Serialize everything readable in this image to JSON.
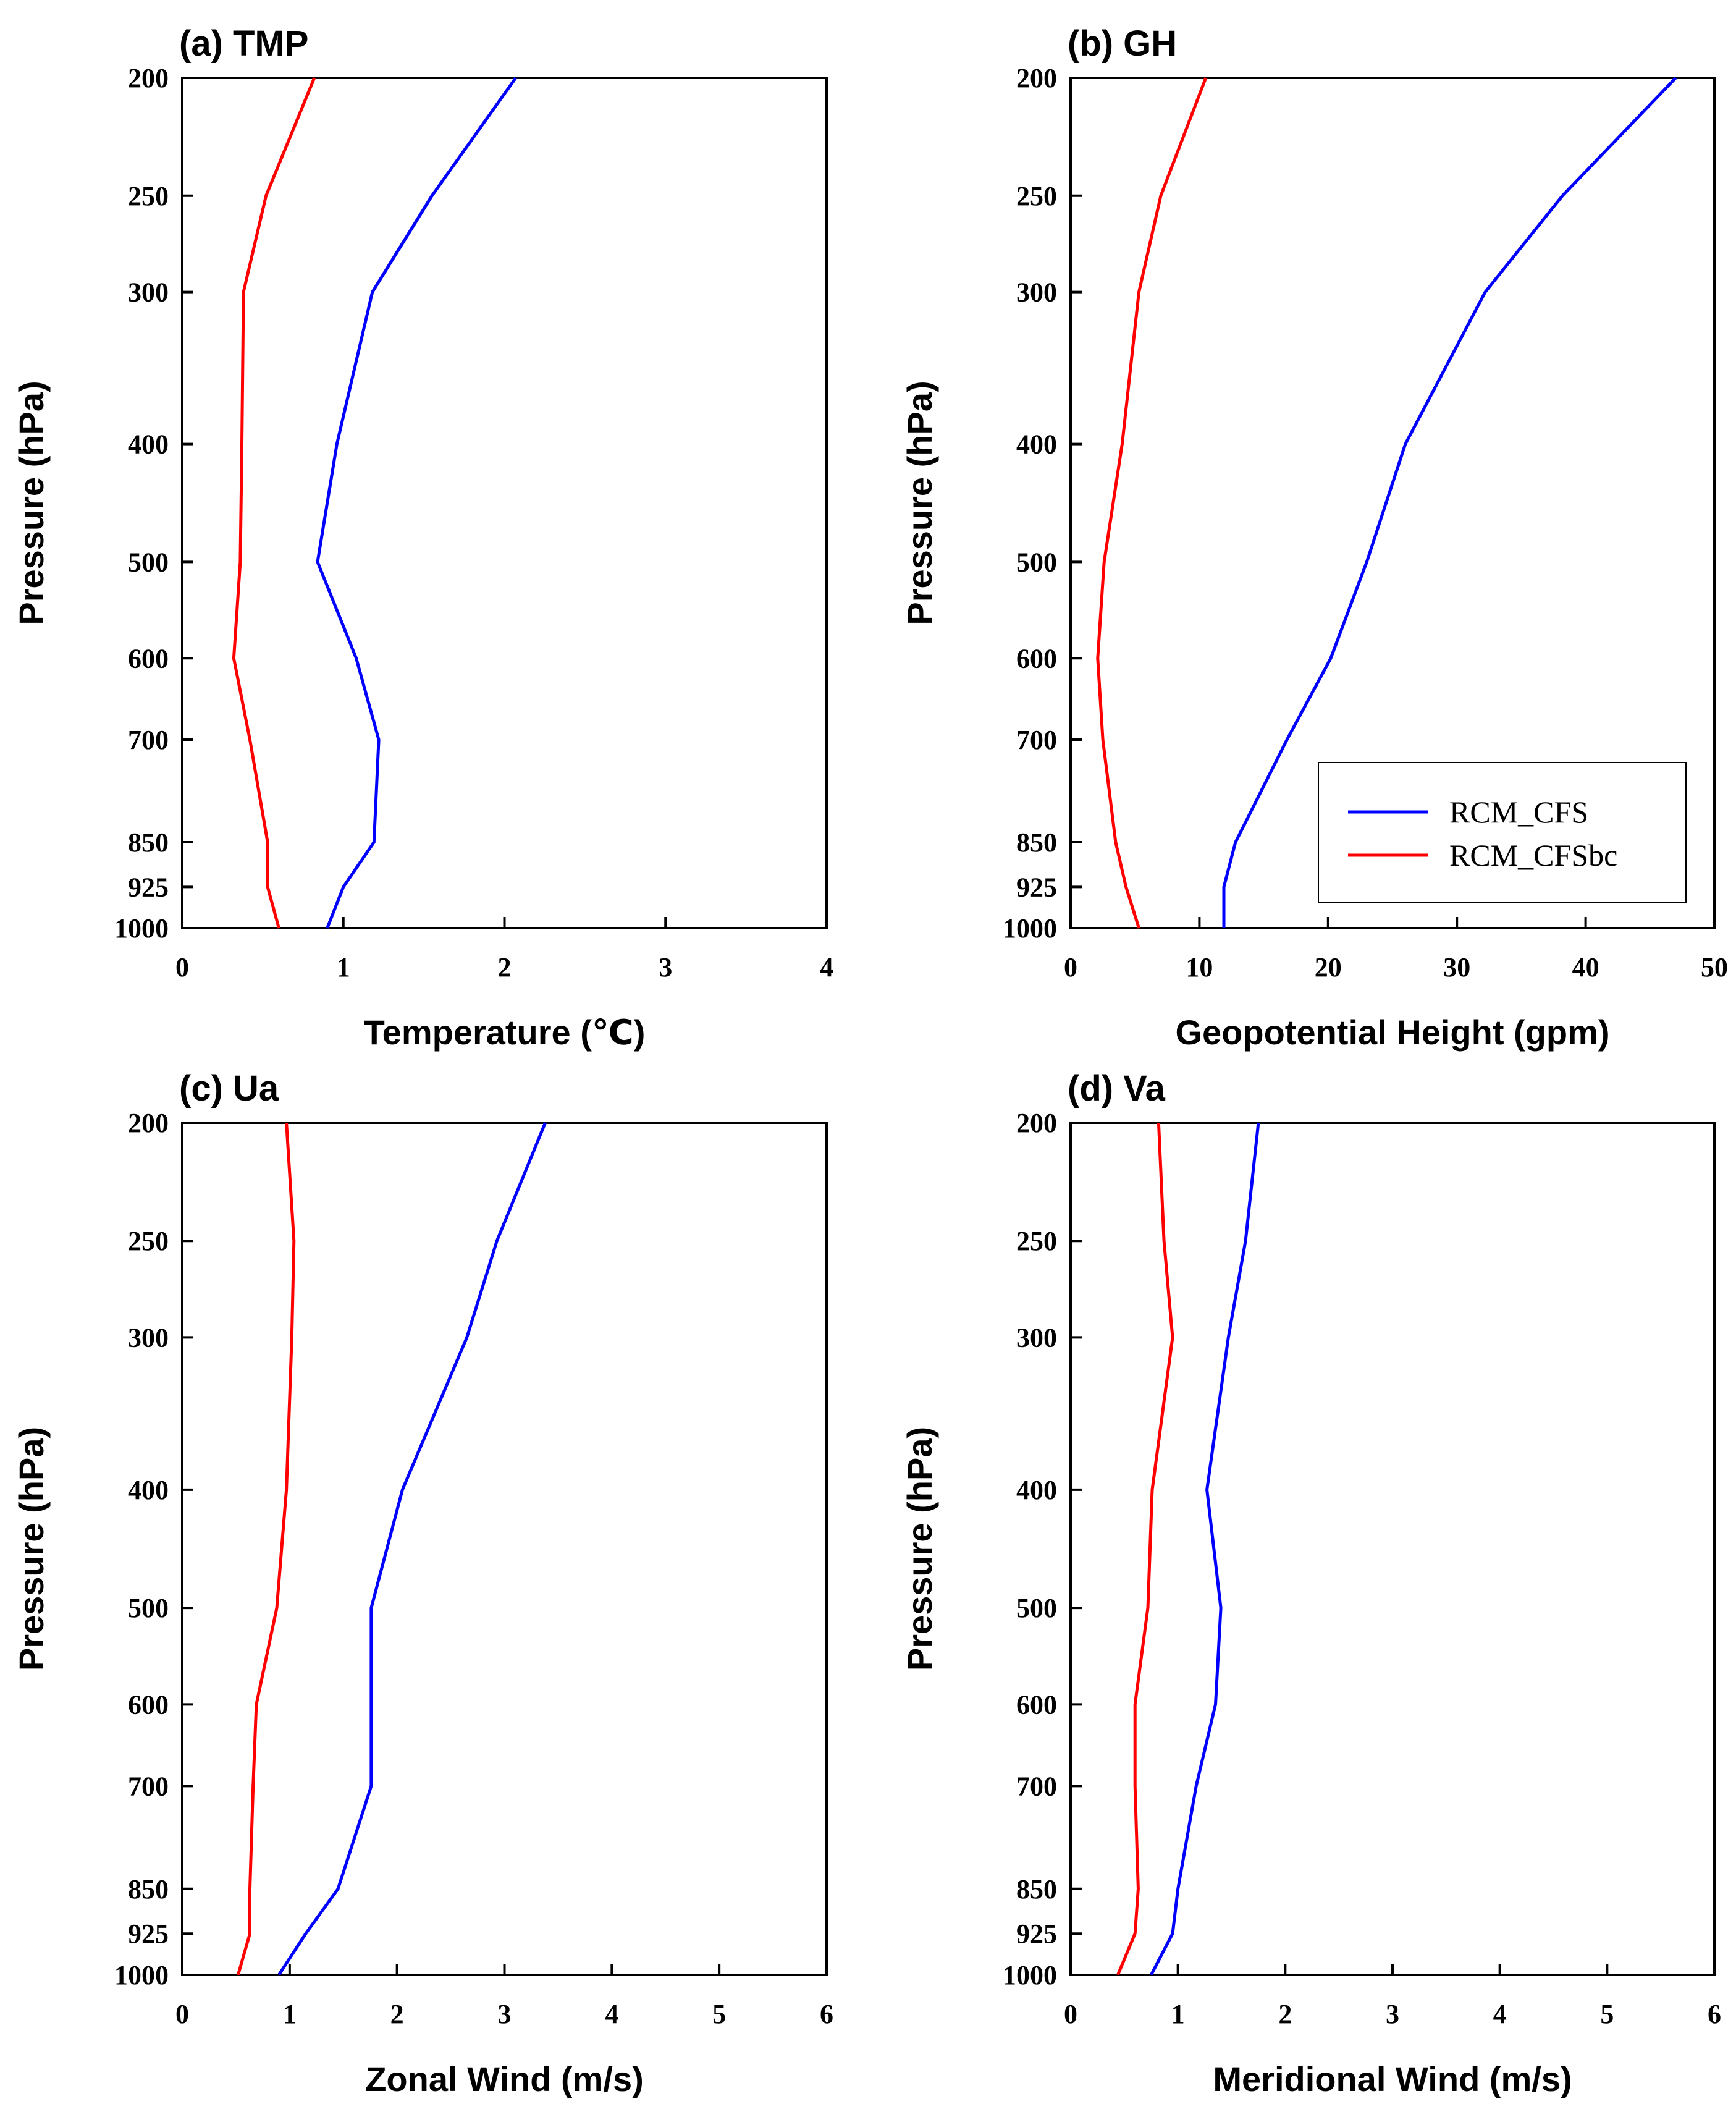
{
  "chart_data": [
    {
      "id": "a",
      "type": "line",
      "title": "(a) TMP",
      "xlabel": "Temperature (℃)",
      "ylabel": "Pressure (hPa)",
      "xlim": [
        0,
        4
      ],
      "xticks": [
        0,
        1,
        2,
        3,
        4
      ],
      "ylim": [
        1000,
        200
      ],
      "yticks": [
        200,
        250,
        300,
        400,
        500,
        600,
        700,
        850,
        925,
        1000
      ],
      "y": [
        200,
        250,
        300,
        400,
        500,
        600,
        700,
        850,
        925,
        1000
      ],
      "series": [
        {
          "name": "RCM_CFS",
          "color": "#0000ff",
          "values": [
            2.07,
            1.55,
            1.18,
            0.96,
            0.84,
            1.08,
            1.22,
            1.19,
            1.0,
            0.9
          ]
        },
        {
          "name": "RCM_CFSbc",
          "color": "#ff0000",
          "values": [
            0.82,
            0.52,
            0.38,
            0.37,
            0.36,
            0.32,
            0.42,
            0.53,
            0.53,
            0.6
          ]
        }
      ],
      "legend": false
    },
    {
      "id": "b",
      "type": "line",
      "title": "(b) GH",
      "xlabel": "Geopotential Height (gpm)",
      "ylabel": "Pressure (hPa)",
      "xlim": [
        0,
        50
      ],
      "xticks": [
        0,
        10,
        20,
        30,
        40,
        50
      ],
      "ylim": [
        1000,
        200
      ],
      "yticks": [
        200,
        250,
        300,
        400,
        500,
        600,
        700,
        850,
        925,
        1000
      ],
      "y": [
        200,
        250,
        300,
        400,
        500,
        600,
        700,
        850,
        925,
        1000
      ],
      "series": [
        {
          "name": "RCM_CFS",
          "color": "#0000ff",
          "values": [
            47.0,
            38.2,
            32.2,
            26.0,
            23.0,
            20.2,
            16.8,
            12.8,
            11.9,
            11.9
          ]
        },
        {
          "name": "RCM_CFSbc",
          "color": "#ff0000",
          "values": [
            10.5,
            7.0,
            5.3,
            4.0,
            2.6,
            2.1,
            2.5,
            3.5,
            4.3,
            5.3
          ]
        }
      ],
      "legend": true,
      "legend_position": "bottom-right"
    },
    {
      "id": "c",
      "type": "line",
      "title": "(c) Ua",
      "xlabel": "Zonal Wind (m/s)",
      "ylabel": "Pressure (hPa)",
      "xlim": [
        0,
        6
      ],
      "xticks": [
        0,
        1,
        2,
        3,
        4,
        5,
        6
      ],
      "ylim": [
        1000,
        200
      ],
      "yticks": [
        200,
        250,
        300,
        400,
        500,
        600,
        700,
        850,
        925,
        1000
      ],
      "y": [
        200,
        250,
        300,
        400,
        500,
        600,
        700,
        850,
        925,
        1000
      ],
      "series": [
        {
          "name": "RCM_CFS",
          "color": "#0000ff",
          "values": [
            3.38,
            2.93,
            2.65,
            2.05,
            1.76,
            1.76,
            1.76,
            1.45,
            1.15,
            0.9
          ]
        },
        {
          "name": "RCM_CFSbc",
          "color": "#ff0000",
          "values": [
            0.97,
            1.04,
            1.02,
            0.97,
            0.88,
            0.69,
            0.66,
            0.63,
            0.63,
            0.52
          ]
        }
      ],
      "legend": false
    },
    {
      "id": "d",
      "type": "line",
      "title": "(d) Va",
      "xlabel": "Meridional Wind (m/s)",
      "ylabel": "Pressure (hPa)",
      "xlim": [
        0,
        6
      ],
      "xticks": [
        0,
        1,
        2,
        3,
        4,
        5,
        6
      ],
      "ylim": [
        1000,
        200
      ],
      "yticks": [
        200,
        250,
        300,
        400,
        500,
        600,
        700,
        850,
        925,
        1000
      ],
      "y": [
        200,
        250,
        300,
        400,
        500,
        600,
        700,
        850,
        925,
        1000
      ],
      "series": [
        {
          "name": "RCM_CFS",
          "color": "#0000ff",
          "values": [
            1.75,
            1.63,
            1.47,
            1.27,
            1.4,
            1.35,
            1.17,
            1.0,
            0.95,
            0.75
          ]
        },
        {
          "name": "RCM_CFSbc",
          "color": "#ff0000",
          "values": [
            0.82,
            0.87,
            0.95,
            0.76,
            0.72,
            0.6,
            0.6,
            0.63,
            0.6,
            0.44
          ]
        }
      ],
      "legend": false
    }
  ]
}
